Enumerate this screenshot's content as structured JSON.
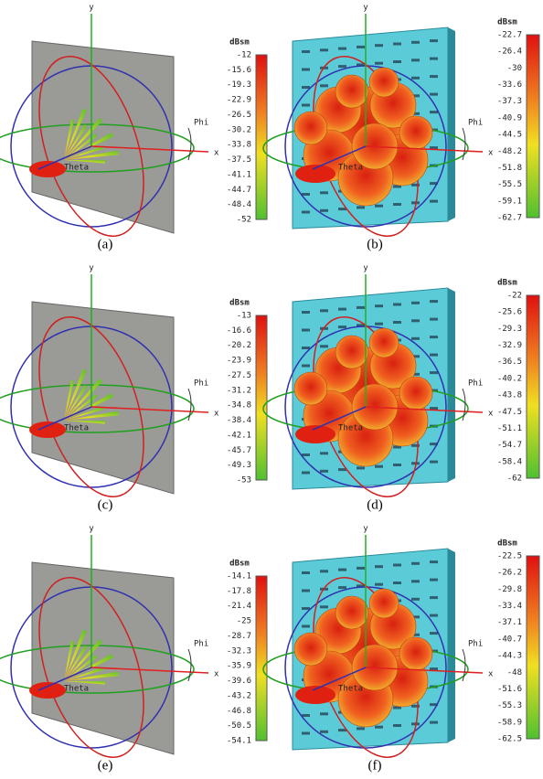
{
  "axes": {
    "y": "y",
    "x": "x",
    "phi": "Phi",
    "theta": "Theta"
  },
  "panels": [
    {
      "label": "(a)",
      "unit": "dBsm",
      "scale": [
        -12,
        -15.6,
        -19.3,
        -22.9,
        -26.5,
        -30.2,
        -33.8,
        -37.5,
        -41.1,
        -44.7,
        -48.4,
        -52
      ]
    },
    {
      "label": "(b)",
      "unit": "dBsm",
      "scale": [
        -22.7,
        -26.4,
        -30,
        -33.6,
        -37.3,
        -40.9,
        -44.5,
        -48.2,
        -51.8,
        -55.5,
        -59.1,
        -62.7
      ]
    },
    {
      "label": "(c)",
      "unit": "dBsm",
      "scale": [
        -13,
        -16.6,
        -20.2,
        -23.9,
        -27.5,
        -31.2,
        -34.8,
        -38.4,
        -42.1,
        -45.7,
        -49.3,
        -53
      ]
    },
    {
      "label": "(d)",
      "unit": "dBsm",
      "scale": [
        -22,
        -25.6,
        -29.3,
        -32.9,
        -36.5,
        -40.2,
        -43.8,
        -47.5,
        -51.1,
        -54.7,
        -58.4,
        -62
      ]
    },
    {
      "label": "(e)",
      "unit": "dBsm",
      "scale": [
        -14.1,
        -17.8,
        -21.4,
        -25,
        -28.7,
        -32.3,
        -35.9,
        -39.6,
        -43.2,
        -46.8,
        -50.5,
        -54.1
      ]
    },
    {
      "label": "(f)",
      "unit": "dBsm",
      "scale": [
        -22.5,
        -26.2,
        -29.8,
        -33.4,
        -37.1,
        -40.7,
        -44.3,
        -48,
        -51.6,
        -55.3,
        -58.9,
        -62.5
      ]
    }
  ]
}
